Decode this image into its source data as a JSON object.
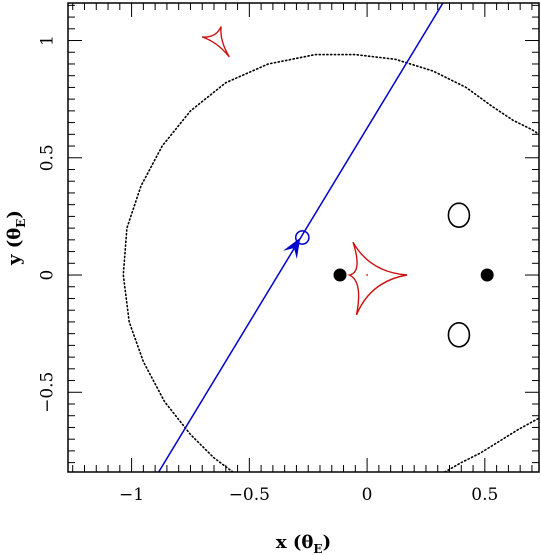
{
  "chart_data": {
    "type": "scatter",
    "title": "",
    "xlabel": {
      "main": "x",
      "paren_open": " (θ",
      "sub": "E",
      "paren_close": ")"
    },
    "ylabel": {
      "main": "y",
      "paren_open": " (θ",
      "sub": "E",
      "paren_close": ")"
    },
    "xlim": [
      -1.27,
      0.73
    ],
    "ylim": [
      -0.84,
      1.16
    ],
    "xticks": [
      {
        "value": -1,
        "label": "−1"
      },
      {
        "value": -0.5,
        "label": "−0.5"
      },
      {
        "value": 0,
        "label": "0"
      },
      {
        "value": 0.5,
        "label": "0.5"
      }
    ],
    "yticks": [
      {
        "value": -0.5,
        "label": "−0.5"
      },
      {
        "value": 0,
        "label": "0"
      },
      {
        "value": 0.5,
        "label": "0.5"
      },
      {
        "value": 1,
        "label": "1"
      }
    ],
    "grid": false,
    "colors": {
      "caustic": "#cc1111",
      "trajectory": "#0000cc",
      "lens": "#000000",
      "curve": "#000000"
    },
    "source_trajectory": {
      "points": [
        [
          -0.885,
          -0.84
        ],
        [
          0.322,
          1.16
        ]
      ],
      "arrow_at": [
        -0.31,
        0.115
      ],
      "source_circle": {
        "center": [
          -0.275,
          0.16
        ],
        "radius": 0.028
      }
    },
    "lens_masses": [
      {
        "x": -0.115,
        "y": 0.0,
        "filled": true
      },
      {
        "x": 0.51,
        "y": 0.0,
        "filled": true
      },
      {
        "x": 0.39,
        "y": 0.255,
        "filled": false
      },
      {
        "x": 0.39,
        "y": -0.255,
        "filled": false
      }
    ],
    "caustics": [
      {
        "name": "central",
        "cusps": [
          [
            -0.06,
            0.14
          ],
          [
            0.17,
            0.0
          ],
          [
            -0.045,
            -0.17
          ],
          [
            -0.075,
            0.0
          ]
        ]
      },
      {
        "name": "planetary",
        "cusps": [
          [
            -0.62,
            1.06
          ],
          [
            -0.585,
            0.93
          ],
          [
            -0.7,
            1.015
          ]
        ]
      }
    ],
    "dotted_curve": [
      [
        -0.57,
        -0.84
      ],
      [
        -0.65,
        -0.78
      ],
      [
        -0.75,
        -0.68
      ],
      [
        -0.86,
        -0.54
      ],
      [
        -0.95,
        -0.37
      ],
      [
        -1.01,
        -0.2
      ],
      [
        -1.035,
        0.0
      ],
      [
        -1.02,
        0.2
      ],
      [
        -0.96,
        0.38
      ],
      [
        -0.87,
        0.55
      ],
      [
        -0.75,
        0.7
      ],
      [
        -0.6,
        0.82
      ],
      [
        -0.42,
        0.9
      ],
      [
        -0.22,
        0.94
      ],
      [
        -0.05,
        0.94
      ],
      [
        0.12,
        0.92
      ],
      [
        0.28,
        0.87
      ],
      [
        0.42,
        0.8
      ],
      [
        0.53,
        0.72
      ],
      [
        0.62,
        0.66
      ],
      [
        0.7,
        0.62
      ],
      [
        0.73,
        0.6
      ]
    ],
    "dotted_curve_lower": [
      [
        0.33,
        -0.84
      ],
      [
        0.4,
        -0.8
      ],
      [
        0.48,
        -0.76
      ],
      [
        0.56,
        -0.71
      ],
      [
        0.64,
        -0.66
      ],
      [
        0.73,
        -0.61
      ]
    ]
  }
}
